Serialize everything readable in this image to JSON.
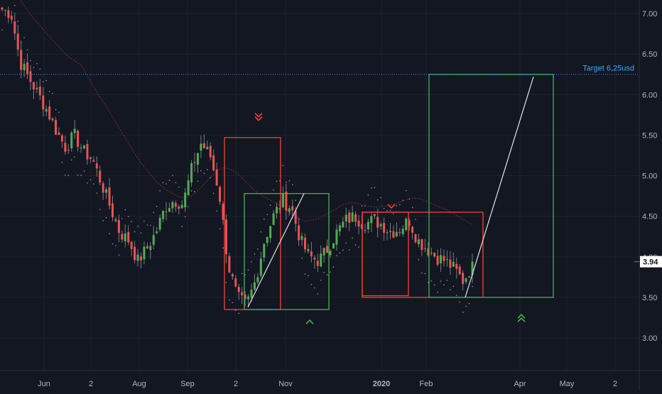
{
  "chart_data": {
    "type": "candlestick",
    "theme": "dark",
    "ylim": [
      2.65,
      7.15
    ],
    "y_ticks": [
      3.0,
      3.5,
      4.0,
      4.5,
      5.0,
      5.5,
      6.0,
      6.5,
      7.0
    ],
    "y_tick_labels": [
      "3.00",
      "3.50",
      "4.00",
      "4.50",
      "5.00",
      "5.50",
      "6.00",
      "6.50",
      "7.00"
    ],
    "x_ticks": [
      {
        "label": "Jun",
        "bold": false
      },
      {
        "label": "2",
        "bold": false
      },
      {
        "label": "Aug",
        "bold": false
      },
      {
        "label": "Sep",
        "bold": false
      },
      {
        "label": "2",
        "bold": false
      },
      {
        "label": "Nov",
        "bold": false
      },
      {
        "label": "2020",
        "bold": true
      },
      {
        "label": "Feb",
        "bold": false
      },
      {
        "label": "Apr",
        "bold": false
      },
      {
        "label": "May",
        "bold": false
      },
      {
        "label": "2",
        "bold": false
      }
    ],
    "last_price": 3.94,
    "last_price_label": "3.94",
    "target": {
      "value": 6.25,
      "label": "Target 6,25usd"
    },
    "colors": {
      "background": "#131722",
      "grid": "#1e2230",
      "axis_text": "#b2b5be",
      "up": "#26a69a",
      "up_candle": "#4caf50",
      "down": "#ef5350",
      "wick": "#787b86",
      "target_line": "#2196f3",
      "target_text": "#42a5f5",
      "box_red": "#f44336",
      "box_green": "#4caf50",
      "projection": "#e0e3eb",
      "ma_slow": "#8b2b2b",
      "sar_dots": "#9598a1",
      "price_label_bg": "#ffffff",
      "price_label_text": "#131722"
    },
    "price_path": [
      7.05,
      7.0,
      6.4,
      6.2,
      6.0,
      5.8,
      5.55,
      5.35,
      5.5,
      5.3,
      5.2,
      4.9,
      4.6,
      4.3,
      4.2,
      3.95,
      4.1,
      4.3,
      4.6,
      4.7,
      4.65,
      5.1,
      5.4,
      5.25,
      4.8,
      3.9,
      3.5,
      3.4,
      3.7,
      4.2,
      4.5,
      4.7,
      4.6,
      4.2,
      4.0,
      3.95,
      4.1,
      4.3,
      4.45,
      4.5,
      4.4,
      4.45,
      4.4,
      4.3,
      4.35,
      4.45,
      4.2,
      4.1,
      4.0,
      3.95,
      3.85,
      3.7,
      3.9
    ],
    "zones": [
      {
        "kind": "red",
        "from": 3.35,
        "to": 5.47,
        "arrow": "down-double",
        "arrow_at": 5.7
      },
      {
        "kind": "green",
        "from": 3.35,
        "to": 4.78,
        "arrow": "up-single",
        "arrow_at": 3.2
      },
      {
        "kind": "red",
        "from": 3.52,
        "to": 4.55,
        "arrow": "down-single",
        "arrow_at": 4.62
      },
      {
        "kind": "red",
        "from": 3.5,
        "to": 4.55,
        "arrow": null,
        "arrow_at": null
      },
      {
        "kind": "green",
        "from": 3.5,
        "to": 6.25,
        "arrow": "up-double",
        "arrow_at": 3.27
      }
    ],
    "projections": [
      {
        "from": 3.38,
        "to": 4.78
      },
      {
        "from": 3.5,
        "to": 6.22
      }
    ]
  }
}
